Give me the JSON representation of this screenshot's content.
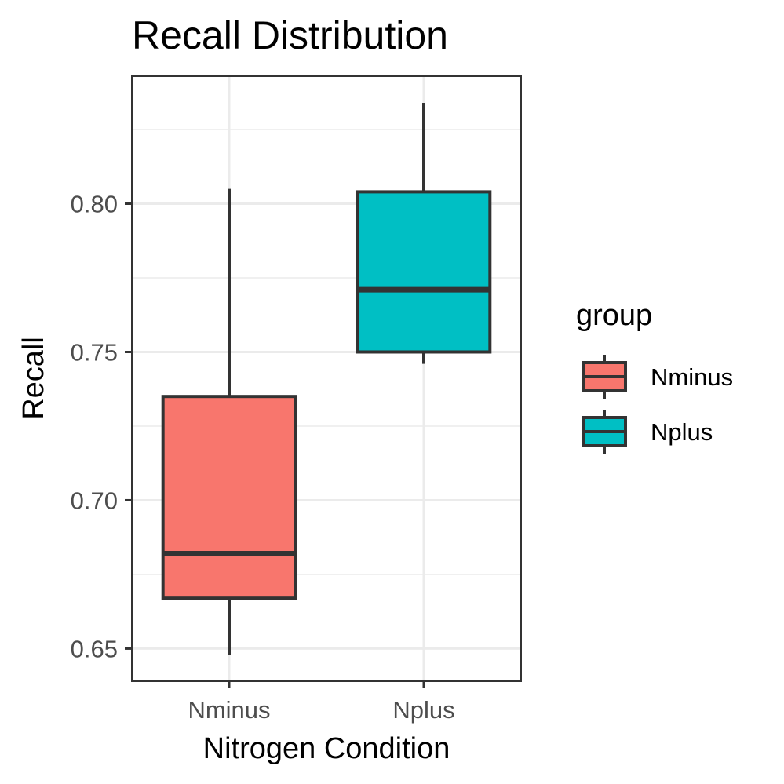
{
  "chart_data": {
    "type": "boxplot",
    "title": "Recall Distribution",
    "xlabel": "Nitrogen Condition",
    "ylabel": "Recall",
    "categories": [
      "Nminus",
      "Nplus"
    ],
    "ylim": [
      0.639,
      0.843
    ],
    "y_ticks": [
      0.65,
      0.7,
      0.75,
      0.8
    ],
    "y_tick_labels": [
      "0.65",
      "0.70",
      "0.75",
      "0.80"
    ],
    "y_minor_ticks": [
      0.675,
      0.725,
      0.775,
      0.825
    ],
    "grid": true,
    "legend": {
      "title": "group",
      "position": "right",
      "entries": [
        "Nminus",
        "Nplus"
      ]
    },
    "series": [
      {
        "name": "Nminus",
        "color": "#F8766D",
        "min": 0.648,
        "q1": 0.667,
        "median": 0.682,
        "q3": 0.735,
        "max": 0.805
      },
      {
        "name": "Nplus",
        "color": "#00BFC4",
        "min": 0.746,
        "q1": 0.75,
        "median": 0.771,
        "q3": 0.804,
        "max": 0.834
      }
    ]
  }
}
